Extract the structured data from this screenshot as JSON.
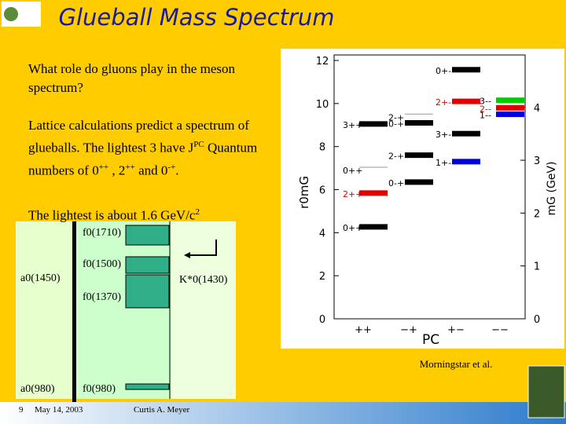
{
  "title": "Glueball Mass Spectrum",
  "question": "What role do gluons play in the meson spectrum?",
  "lattice": [
    "Lattice calculations predict a spectrum of glueballs. The lightest 3 have J",
    "PC",
    " Quantum numbers of 0",
    "++",
    " , 2",
    "++",
    "  and 0",
    "-+",
    "."
  ],
  "lightest": [
    "The lightest is about 1.6 GeV/c",
    "2"
  ],
  "states": {
    "f1710": "f0(1710)",
    "f1500": "f0(1500)",
    "f1370": "f0(1370)",
    "f980": "f0(980)",
    "a1450": "a0(1450)",
    "a980": "a0(980)",
    "k1430": "K*0(1430)"
  },
  "plot": {
    "left_ticks": [
      "0",
      "2",
      "4",
      "6",
      "8",
      "10",
      "12"
    ],
    "right_ticks": [
      "0",
      "1",
      "2",
      "3",
      "4"
    ],
    "y_label": "r0mG",
    "y2_label": "mG (GeV)",
    "x_label": "PC",
    "columns": [
      "++",
      "−+",
      "+−",
      "−−"
    ],
    "levels": [
      {
        "label": "0++",
        "column": 0,
        "value": 4.27,
        "color": "#000000"
      },
      {
        "label": "2++",
        "column": 0,
        "value": 5.84,
        "color": "#e00000"
      },
      {
        "label": "0++",
        "column": 0,
        "value": 6.93,
        "color": "#999999"
      },
      {
        "label": "3++",
        "column": 0,
        "value": 9.05,
        "color": "#000000"
      },
      {
        "label": "0-+",
        "column": 1,
        "value": 6.35,
        "color": "#000000"
      },
      {
        "label": "2-+",
        "column": 1,
        "value": 7.6,
        "color": "#000000"
      },
      {
        "label": "0-+",
        "column": 1,
        "value": 9.1,
        "color": "#000000"
      },
      {
        "label": "2-+",
        "column": 1,
        "value": 9.4,
        "color": "#999999"
      },
      {
        "label": "1+-",
        "column": 2,
        "value": 7.3,
        "color": "#0000dd"
      },
      {
        "label": "3+-",
        "column": 2,
        "value": 8.6,
        "color": "#000000"
      },
      {
        "label": "2+-",
        "column": 2,
        "value": 10.1,
        "color": "#e00000"
      },
      {
        "label": "0+-",
        "column": 2,
        "value": 11.57,
        "color": "#000000"
      },
      {
        "label": "1--",
        "column": 3,
        "value": 9.5,
        "color": "#0000dd"
      },
      {
        "label": "2--",
        "column": 3,
        "value": 9.8,
        "color": "#e00000"
      },
      {
        "label": "3--",
        "column": 3,
        "value": 10.15,
        "color": "#00cc00"
      }
    ]
  },
  "credit": "Morningstar et al.",
  "footer": {
    "page": "9",
    "date": "May 14, 2003",
    "author": "Curtis A. Meyer"
  }
}
